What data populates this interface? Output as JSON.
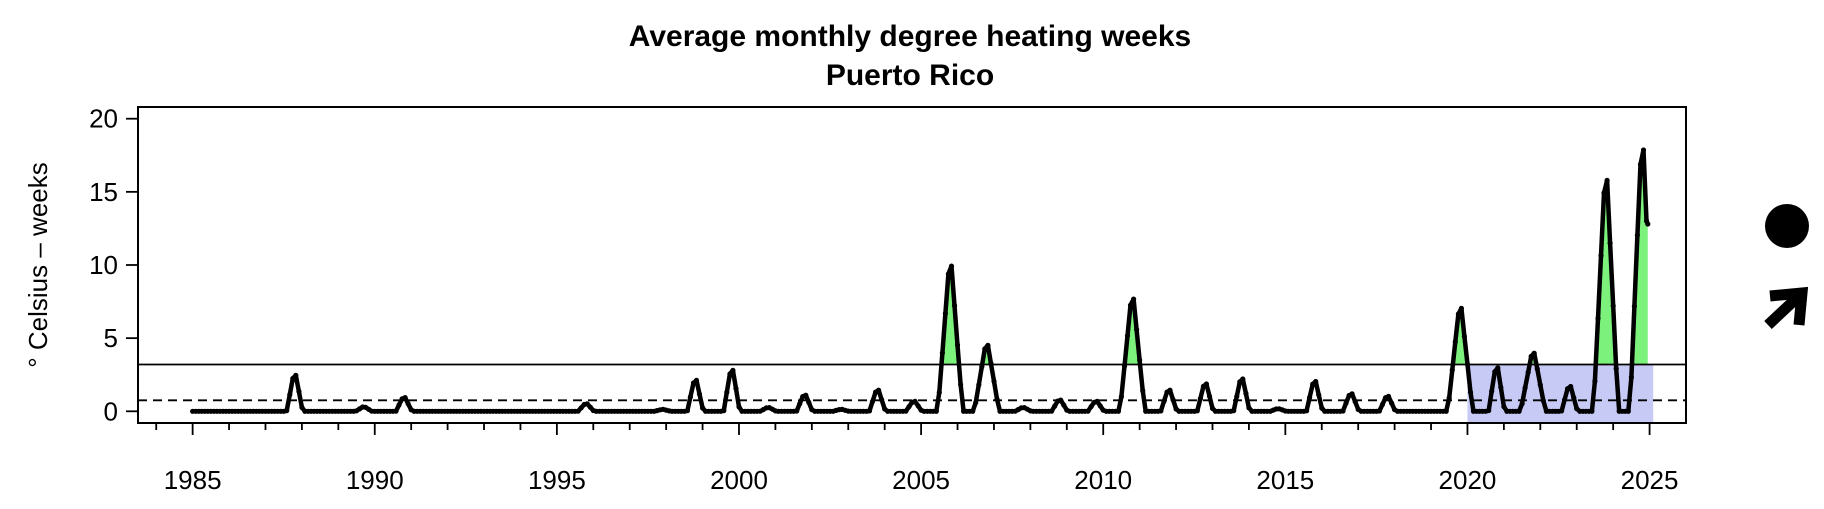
{
  "chart_data": {
    "type": "line",
    "title": "Average monthly degree heating weeks",
    "subtitle": "Puerto Rico",
    "xlabel": "",
    "ylabel": "° Celsius – weeks",
    "xlim": [
      1983.5,
      2026
    ],
    "ylim": [
      -0.8,
      20.8
    ],
    "x_ticks": [
      1985,
      1990,
      1995,
      2000,
      2005,
      2010,
      2015,
      2020,
      2025
    ],
    "y_ticks": [
      0,
      5,
      10,
      15,
      20
    ],
    "grid": false,
    "reference_lines": [
      {
        "y": 3.2,
        "style": "solid"
      },
      {
        "y": 0.75,
        "style": "dashed"
      }
    ],
    "highlight_period": {
      "x_start": 2020,
      "x_end": 2025.1,
      "color": "#c8caf6"
    },
    "exceedance_fill_color": "#7cf27c",
    "line_color": "#000000",
    "series": [
      {
        "peaks": [
          {
            "x": 1987.8,
            "y": 2.9
          },
          {
            "x": 1989.7,
            "y": 0.35
          },
          {
            "x": 1990.8,
            "y": 1.1
          },
          {
            "x": 1995.8,
            "y": 0.6
          },
          {
            "x": 1997.9,
            "y": 0.15
          },
          {
            "x": 1998.8,
            "y": 2.5
          },
          {
            "x": 1999.8,
            "y": 3.3
          },
          {
            "x": 2000.8,
            "y": 0.3
          },
          {
            "x": 2001.8,
            "y": 1.3
          },
          {
            "x": 2002.8,
            "y": 0.15
          },
          {
            "x": 2003.8,
            "y": 1.7
          },
          {
            "x": 2004.8,
            "y": 0.8
          },
          {
            "x": 2005.8,
            "y": 11.0
          },
          {
            "x": 2006.8,
            "y": 5.0
          },
          {
            "x": 2007.8,
            "y": 0.3
          },
          {
            "x": 2008.8,
            "y": 0.9
          },
          {
            "x": 2009.8,
            "y": 0.8
          },
          {
            "x": 2010.8,
            "y": 8.5
          },
          {
            "x": 2011.8,
            "y": 1.7
          },
          {
            "x": 2012.8,
            "y": 2.2
          },
          {
            "x": 2013.8,
            "y": 2.6
          },
          {
            "x": 2014.8,
            "y": 0.2
          },
          {
            "x": 2015.8,
            "y": 2.4
          },
          {
            "x": 2016.8,
            "y": 1.4
          },
          {
            "x": 2017.8,
            "y": 1.2
          },
          {
            "x": 2019.8,
            "y": 7.8
          },
          {
            "x": 2020.8,
            "y": 3.5
          },
          {
            "x": 2021.8,
            "y": 4.4
          },
          {
            "x": 2022.8,
            "y": 2.0
          },
          {
            "x": 2023.8,
            "y": 17.5
          },
          {
            "x": 2024.8,
            "y": 19.8
          }
        ],
        "start_x": 1985,
        "end": {
          "x": 2024.95,
          "y": 12.8
        }
      }
    ]
  },
  "side_markers": {
    "dot_icon": "filled-circle",
    "arrow_icon": "arrow-up-right"
  }
}
